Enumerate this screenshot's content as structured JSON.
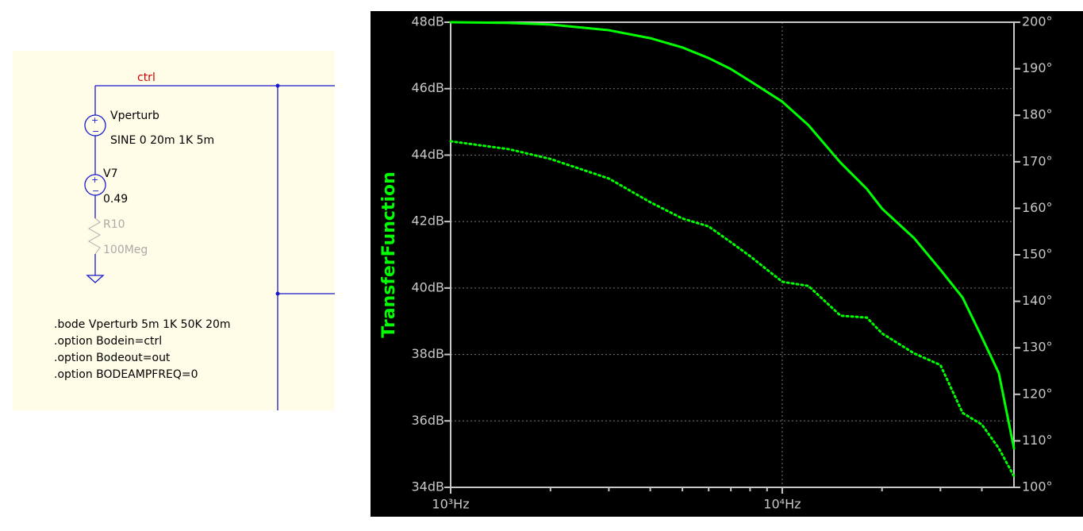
{
  "schematic": {
    "net_label": "ctrl",
    "source1": {
      "name": "Vperturb",
      "value": "SINE 0 20m 1K 5m"
    },
    "source2": {
      "name": "V7",
      "value": "0.49"
    },
    "resistor": {
      "name": "R10",
      "value": "100Meg"
    },
    "directives": [
      ".bode Vperturb 5m 1K 50K 20m",
      ".option Bodein=ctrl",
      ".option Bodeout=out",
      ".option BODEAMPFREQ=0"
    ]
  },
  "chart_data": {
    "type": "line",
    "ylabel": "TransferFunction",
    "xscale": "log",
    "grid": true,
    "x": [
      1000,
      1500,
      2000,
      3000,
      4000,
      5000,
      6000,
      7000,
      8000,
      10000,
      12000,
      15000,
      18000,
      20000,
      25000,
      30000,
      35000,
      40000,
      45000,
      50000
    ],
    "series": [
      {
        "color": "#00ff00",
        "style": "solid",
        "axis": "y",
        "values": [
          48.0,
          47.98,
          47.93,
          47.76,
          47.52,
          47.24,
          46.92,
          46.59,
          46.23,
          45.61,
          44.9,
          43.77,
          42.98,
          42.39,
          41.5,
          40.55,
          39.71,
          38.52,
          37.44,
          35.17
        ]
      },
      {
        "color": "#00ff00",
        "style": "dotted",
        "axis": "y2",
        "values": [
          174.4,
          172.7,
          170.6,
          166.4,
          161.3,
          157.8,
          156.1,
          152.7,
          149.7,
          144.2,
          143.3,
          136.9,
          136.5,
          133.1,
          128.8,
          126.3,
          116.0,
          113.5,
          108.4,
          102.4
        ]
      }
    ],
    "xlim": [
      1000,
      50000
    ],
    "xticks": [
      {
        "value": 1000,
        "label": "10³Hz"
      },
      {
        "value": 10000,
        "label": "10⁴Hz"
      }
    ],
    "xminorticks": [
      2000,
      3000,
      4000,
      5000,
      6000,
      7000,
      8000,
      9000,
      20000,
      30000,
      40000
    ],
    "ylim": [
      34,
      48
    ],
    "yticks": [
      {
        "value": 34,
        "label": "34dB"
      },
      {
        "value": 36,
        "label": "36dB"
      },
      {
        "value": 38,
        "label": "38dB"
      },
      {
        "value": 40,
        "label": "40dB"
      },
      {
        "value": 42,
        "label": "42dB"
      },
      {
        "value": 44,
        "label": "44dB"
      },
      {
        "value": 46,
        "label": "46dB"
      },
      {
        "value": 48,
        "label": "48dB"
      }
    ],
    "y2lim": [
      100,
      200
    ],
    "y2ticks": [
      {
        "value": 100,
        "label": "100°"
      },
      {
        "value": 110,
        "label": "110°"
      },
      {
        "value": 120,
        "label": "120°"
      },
      {
        "value": 130,
        "label": "130°"
      },
      {
        "value": 140,
        "label": "140°"
      },
      {
        "value": 150,
        "label": "150°"
      },
      {
        "value": 160,
        "label": "160°"
      },
      {
        "value": 170,
        "label": "170°"
      },
      {
        "value": 180,
        "label": "180°"
      },
      {
        "value": 190,
        "label": "190°"
      },
      {
        "value": 200,
        "label": "200°"
      }
    ]
  }
}
